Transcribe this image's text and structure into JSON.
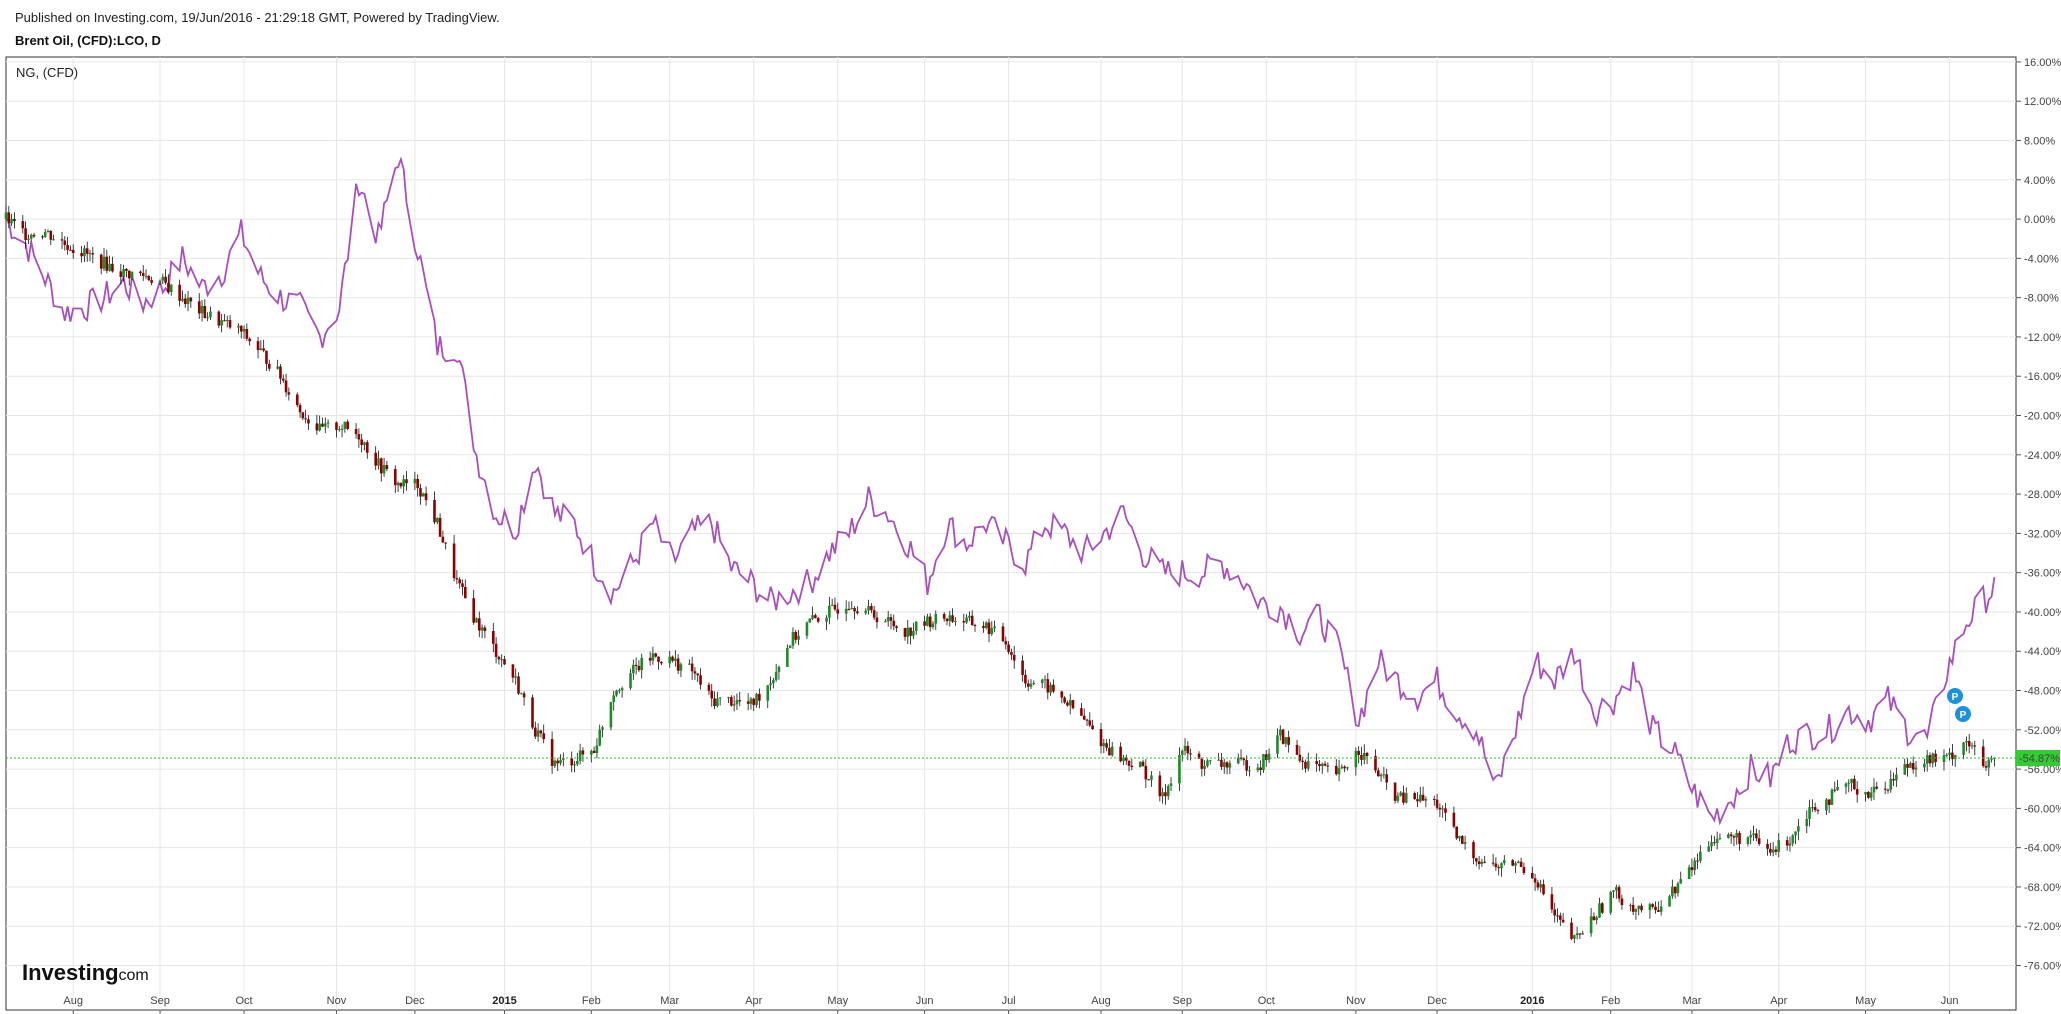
{
  "header": {
    "published": "Published on Investing.com, 19/Jun/2016 - 21:29:18 GMT, Powered by TradingView.",
    "title": "Brent Oil, (CFD):LCO, D"
  },
  "legend": {
    "compare_series": "NG,  (CFD)"
  },
  "logo": {
    "main": "Investing",
    "suffix": ".com"
  },
  "colors": {
    "up_candle": "#1f8a2a",
    "down_candle": "#8b0000",
    "compare_line": "#a84fbf",
    "price_line": "#2fbf2f",
    "grid": "#e6e6e6",
    "marker": "#1e90e0"
  },
  "chart_data": {
    "type": "line",
    "title": "Brent Oil, (CFD):LCO, D",
    "xlabel": "",
    "ylabel": "",
    "y_unit": "percent change",
    "ylim": [
      -79,
      16.5
    ],
    "y_ticks": [
      16,
      12,
      8,
      4,
      0,
      -4,
      -8,
      -12,
      -16,
      -20,
      -24,
      -28,
      -32,
      -36,
      -40,
      -44,
      -48,
      -52,
      -56,
      -60,
      -64,
      -68,
      -72,
      -76
    ],
    "y_tick_labels": [
      "16.00%",
      "12.00%",
      "8.00%",
      "4.00%",
      "0.00%",
      "-4.00%",
      "-8.00%",
      "-12.00%",
      "-16.00%",
      "-20.00%",
      "-24.00%",
      "-28.00%",
      "-32.00%",
      "-36.00%",
      "-40.00%",
      "-44.00%",
      "-48.00%",
      "-52.00%",
      "-56.00%",
      "-60.00%",
      "-64.00%",
      "-68.00%",
      "-72.00%",
      "-76.00%"
    ],
    "x_range": [
      "2014-07-08",
      "2016-06-19"
    ],
    "x_ticks": [
      {
        "label": "Aug",
        "date": "2014-08-01",
        "bold": false
      },
      {
        "label": "Sep",
        "date": "2014-09-01",
        "bold": false
      },
      {
        "label": "Oct",
        "date": "2014-10-01",
        "bold": false
      },
      {
        "label": "Nov",
        "date": "2014-11-03",
        "bold": false
      },
      {
        "label": "Dec",
        "date": "2014-12-01",
        "bold": false
      },
      {
        "label": "2015",
        "date": "2015-01-02",
        "bold": true
      },
      {
        "label": "Feb",
        "date": "2015-02-02",
        "bold": false
      },
      {
        "label": "Mar",
        "date": "2015-03-02",
        "bold": false
      },
      {
        "label": "Apr",
        "date": "2015-04-01",
        "bold": false
      },
      {
        "label": "May",
        "date": "2015-05-01",
        "bold": false
      },
      {
        "label": "Jun",
        "date": "2015-06-01",
        "bold": false
      },
      {
        "label": "Jul",
        "date": "2015-07-01",
        "bold": false
      },
      {
        "label": "Aug",
        "date": "2015-08-03",
        "bold": false
      },
      {
        "label": "Sep",
        "date": "2015-09-01",
        "bold": false
      },
      {
        "label": "Oct",
        "date": "2015-10-01",
        "bold": false
      },
      {
        "label": "Nov",
        "date": "2015-11-02",
        "bold": false
      },
      {
        "label": "Dec",
        "date": "2015-12-01",
        "bold": false
      },
      {
        "label": "2016",
        "date": "2016-01-04",
        "bold": true
      },
      {
        "label": "Feb",
        "date": "2016-02-01",
        "bold": false
      },
      {
        "label": "Mar",
        "date": "2016-03-01",
        "bold": false
      },
      {
        "label": "Apr",
        "date": "2016-04-01",
        "bold": false
      },
      {
        "label": "May",
        "date": "2016-05-02",
        "bold": false
      },
      {
        "label": "Jun",
        "date": "2016-06-01",
        "bold": false
      }
    ],
    "current_value_label": "-54.87%",
    "current_value": -54.87,
    "series": [
      {
        "name": "Brent Oil, (CFD):LCO",
        "style": "candlestick",
        "points": [
          [
            "2014-07-08",
            0
          ],
          [
            "2014-07-15",
            -1.5
          ],
          [
            "2014-07-22",
            -1.3
          ],
          [
            "2014-07-29",
            -2.5
          ],
          [
            "2014-08-05",
            -3.5
          ],
          [
            "2014-08-12",
            -4.5
          ],
          [
            "2014-08-19",
            -5.5
          ],
          [
            "2014-08-26",
            -5.7
          ],
          [
            "2014-09-02",
            -6.5
          ],
          [
            "2014-09-09",
            -8
          ],
          [
            "2014-09-16",
            -9.5
          ],
          [
            "2014-09-23",
            -10.5
          ],
          [
            "2014-09-30",
            -11.5
          ],
          [
            "2014-10-07",
            -13.5
          ],
          [
            "2014-10-14",
            -16
          ],
          [
            "2014-10-21",
            -19.5
          ],
          [
            "2014-10-28",
            -21.5
          ],
          [
            "2014-11-04",
            -21
          ],
          [
            "2014-11-11",
            -22
          ],
          [
            "2014-11-18",
            -25
          ],
          [
            "2014-11-25",
            -27
          ],
          [
            "2014-12-02",
            -27
          ],
          [
            "2014-12-09",
            -31
          ],
          [
            "2014-12-16",
            -37
          ],
          [
            "2014-12-23",
            -41
          ],
          [
            "2014-12-30",
            -44
          ],
          [
            "2015-01-06",
            -47
          ],
          [
            "2015-01-13",
            -52
          ],
          [
            "2015-01-20",
            -55.5
          ],
          [
            "2015-01-27",
            -55
          ],
          [
            "2015-02-03",
            -54
          ],
          [
            "2015-02-10",
            -48
          ],
          [
            "2015-02-17",
            -46
          ],
          [
            "2015-02-24",
            -44.5
          ],
          [
            "2015-03-03",
            -45
          ],
          [
            "2015-03-10",
            -46
          ],
          [
            "2015-03-17",
            -49
          ],
          [
            "2015-03-24",
            -49
          ],
          [
            "2015-03-31",
            -49.5
          ],
          [
            "2015-04-07",
            -47
          ],
          [
            "2015-04-14",
            -43
          ],
          [
            "2015-04-21",
            -41
          ],
          [
            "2015-04-28",
            -40
          ],
          [
            "2015-05-05",
            -39
          ],
          [
            "2015-05-12",
            -40
          ],
          [
            "2015-05-19",
            -41
          ],
          [
            "2015-05-26",
            -42
          ],
          [
            "2015-06-02",
            -41
          ],
          [
            "2015-06-09",
            -40.5
          ],
          [
            "2015-06-16",
            -41
          ],
          [
            "2015-06-23",
            -41.5
          ],
          [
            "2015-06-30",
            -43
          ],
          [
            "2015-07-07",
            -47
          ],
          [
            "2015-07-14",
            -47.5
          ],
          [
            "2015-07-21",
            -49
          ],
          [
            "2015-07-28",
            -51
          ],
          [
            "2015-08-04",
            -53.5
          ],
          [
            "2015-08-11",
            -55
          ],
          [
            "2015-08-18",
            -56
          ],
          [
            "2015-08-25",
            -59
          ],
          [
            "2015-09-01",
            -54
          ],
          [
            "2015-09-08",
            -55.5
          ],
          [
            "2015-09-15",
            -55.5
          ],
          [
            "2015-09-22",
            -55.5
          ],
          [
            "2015-09-29",
            -55.5
          ],
          [
            "2015-10-06",
            -52.5
          ],
          [
            "2015-10-13",
            -55
          ],
          [
            "2015-10-20",
            -56
          ],
          [
            "2015-10-27",
            -56.5
          ],
          [
            "2015-11-03",
            -54
          ],
          [
            "2015-11-10",
            -56.5
          ],
          [
            "2015-11-17",
            -59
          ],
          [
            "2015-11-24",
            -59
          ],
          [
            "2015-12-01",
            -59.5
          ],
          [
            "2015-12-08",
            -63
          ],
          [
            "2015-12-15",
            -65
          ],
          [
            "2015-12-22",
            -66
          ],
          [
            "2015-12-29",
            -65.5
          ],
          [
            "2016-01-05",
            -67
          ],
          [
            "2016-01-12",
            -71
          ],
          [
            "2016-01-19",
            -73.5
          ],
          [
            "2016-01-26",
            -71
          ],
          [
            "2016-02-02",
            -68.5
          ],
          [
            "2016-02-09",
            -70
          ],
          [
            "2016-02-16",
            -70.5
          ],
          [
            "2016-02-23",
            -68.5
          ],
          [
            "2016-03-01",
            -66
          ],
          [
            "2016-03-08",
            -63
          ],
          [
            "2016-03-15",
            -63
          ],
          [
            "2016-03-22",
            -63
          ],
          [
            "2016-03-29",
            -64.5
          ],
          [
            "2016-04-05",
            -63
          ],
          [
            "2016-04-12",
            -60
          ],
          [
            "2016-04-19",
            -59
          ],
          [
            "2016-04-26",
            -57.5
          ],
          [
            "2016-05-03",
            -58.5
          ],
          [
            "2016-05-10",
            -57.5
          ],
          [
            "2016-05-17",
            -55.5
          ],
          [
            "2016-05-24",
            -55
          ],
          [
            "2016-05-31",
            -55
          ],
          [
            "2016-06-07",
            -53
          ],
          [
            "2016-06-14",
            -56
          ],
          [
            "2016-06-17",
            -54.87
          ]
        ]
      },
      {
        "name": "NG,  (CFD)",
        "style": "line",
        "points": [
          [
            "2014-07-08",
            0
          ],
          [
            "2014-07-15",
            -2.5
          ],
          [
            "2014-07-22",
            -6
          ],
          [
            "2014-07-29",
            -9.5
          ],
          [
            "2014-08-05",
            -9
          ],
          [
            "2014-08-12",
            -8
          ],
          [
            "2014-08-19",
            -6.5
          ],
          [
            "2014-08-26",
            -8.5
          ],
          [
            "2014-09-02",
            -7
          ],
          [
            "2014-09-09",
            -4
          ],
          [
            "2014-09-16",
            -7
          ],
          [
            "2014-09-23",
            -5.5
          ],
          [
            "2014-09-30",
            -1.5
          ],
          [
            "2014-10-07",
            -6
          ],
          [
            "2014-10-14",
            -8
          ],
          [
            "2014-10-21",
            -9
          ],
          [
            "2014-10-28",
            -12
          ],
          [
            "2014-11-04",
            -9
          ],
          [
            "2014-11-11",
            4
          ],
          [
            "2014-11-18",
            -2
          ],
          [
            "2014-11-25",
            6.5
          ],
          [
            "2014-12-02",
            -3
          ],
          [
            "2014-12-09",
            -13
          ],
          [
            "2014-12-16",
            -13
          ],
          [
            "2014-12-23",
            -24
          ],
          [
            "2014-12-30",
            -30
          ],
          [
            "2015-01-06",
            -31.5
          ],
          [
            "2015-01-13",
            -24.5
          ],
          [
            "2015-01-20",
            -30
          ],
          [
            "2015-01-27",
            -31
          ],
          [
            "2015-02-03",
            -35
          ],
          [
            "2015-02-10",
            -38
          ],
          [
            "2015-02-17",
            -35
          ],
          [
            "2015-02-24",
            -31
          ],
          [
            "2015-03-03",
            -35
          ],
          [
            "2015-03-10",
            -32
          ],
          [
            "2015-03-17",
            -31
          ],
          [
            "2015-03-24",
            -35.5
          ],
          [
            "2015-03-31",
            -37
          ],
          [
            "2015-04-07",
            -39
          ],
          [
            "2015-04-14",
            -38
          ],
          [
            "2015-04-21",
            -37
          ],
          [
            "2015-04-28",
            -34
          ],
          [
            "2015-05-05",
            -32
          ],
          [
            "2015-05-12",
            -28.5
          ],
          [
            "2015-05-19",
            -30
          ],
          [
            "2015-05-26",
            -33
          ],
          [
            "2015-06-02",
            -37
          ],
          [
            "2015-06-09",
            -31
          ],
          [
            "2015-06-16",
            -33
          ],
          [
            "2015-06-23",
            -31
          ],
          [
            "2015-06-30",
            -33
          ],
          [
            "2015-07-07",
            -35
          ],
          [
            "2015-07-14",
            -31
          ],
          [
            "2015-07-21",
            -32
          ],
          [
            "2015-07-28",
            -34
          ],
          [
            "2015-08-04",
            -32
          ],
          [
            "2015-08-11",
            -30
          ],
          [
            "2015-08-18",
            -34
          ],
          [
            "2015-08-25",
            -36
          ],
          [
            "2015-09-01",
            -36
          ],
          [
            "2015-09-08",
            -36
          ],
          [
            "2015-09-15",
            -35
          ],
          [
            "2015-09-22",
            -36.5
          ],
          [
            "2015-09-29",
            -39
          ],
          [
            "2015-10-06",
            -39.5
          ],
          [
            "2015-10-13",
            -42
          ],
          [
            "2015-10-20",
            -40.5
          ],
          [
            "2015-10-27",
            -44
          ],
          [
            "2015-11-03",
            -51
          ],
          [
            "2015-11-10",
            -45
          ],
          [
            "2015-11-17",
            -47
          ],
          [
            "2015-11-24",
            -48.5
          ],
          [
            "2015-12-01",
            -47
          ],
          [
            "2015-12-08",
            -50
          ],
          [
            "2015-12-15",
            -52
          ],
          [
            "2015-12-22",
            -58
          ],
          [
            "2015-12-29",
            -52
          ],
          [
            "2016-01-05",
            -45
          ],
          [
            "2016-01-12",
            -47
          ],
          [
            "2016-01-19",
            -44
          ],
          [
            "2016-01-26",
            -50
          ],
          [
            "2016-02-02",
            -49
          ],
          [
            "2016-02-09",
            -46
          ],
          [
            "2016-02-16",
            -52
          ],
          [
            "2016-02-23",
            -54
          ],
          [
            "2016-03-01",
            -58
          ],
          [
            "2016-03-08",
            -61
          ],
          [
            "2016-03-15",
            -59
          ],
          [
            "2016-03-22",
            -56
          ],
          [
            "2016-03-29",
            -57
          ],
          [
            "2016-04-05",
            -53
          ],
          [
            "2016-04-12",
            -52.5
          ],
          [
            "2016-04-19",
            -52
          ],
          [
            "2016-04-26",
            -50
          ],
          [
            "2016-05-03",
            -51
          ],
          [
            "2016-05-10",
            -49
          ],
          [
            "2016-05-17",
            -52
          ],
          [
            "2016-05-24",
            -53
          ],
          [
            "2016-05-31",
            -46
          ],
          [
            "2016-06-07",
            -41
          ],
          [
            "2016-06-14",
            -38.5
          ],
          [
            "2016-06-17",
            -37.5
          ]
        ]
      }
    ]
  }
}
